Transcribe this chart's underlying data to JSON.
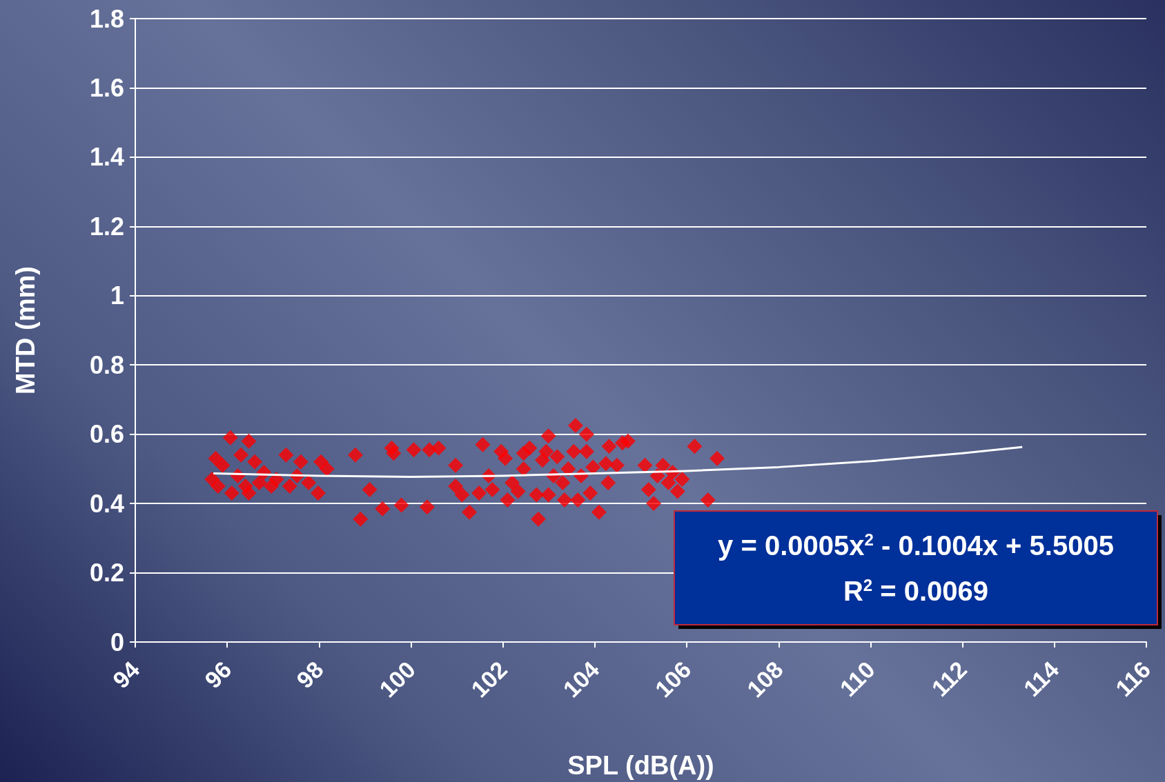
{
  "chart_data": {
    "type": "scatter",
    "xlabel": "SPL (dB(A))",
    "ylabel": "MTD (mm)",
    "xlim": [
      94,
      116
    ],
    "xticks": [
      94,
      96,
      98,
      100,
      102,
      104,
      106,
      108,
      110,
      112,
      114,
      116
    ],
    "ylim": [
      0,
      1.8
    ],
    "yticks": [
      0,
      0.2,
      0.4,
      0.6,
      0.8,
      1,
      1.2,
      1.4,
      1.6,
      1.8
    ],
    "grid": "y",
    "marker": "diamond",
    "annotations": [
      "y = 0.0005x$^{2}$ - 0.1004x + 5.5005",
      "R$^{2}$ = 0.0069"
    ],
    "series": [
      {
        "color": "#ff0000",
        "x": [
          95.67,
          95.75,
          95.8,
          95.9,
          96.07,
          96.1,
          96.23,
          96.3,
          96.4,
          96.47,
          96.47,
          96.6,
          96.7,
          96.8,
          96.96,
          97.07,
          97.28,
          97.36,
          97.52,
          97.6,
          97.77,
          97.98,
          98.04,
          98.17,
          98.79,
          98.9,
          99.1,
          99.38,
          99.58,
          99.62,
          99.79,
          100.06,
          100.35,
          100.4,
          100.6,
          100.97,
          100.97,
          101.11,
          101.27,
          101.48,
          101.56,
          101.69,
          101.77,
          101.96,
          102.05,
          102.1,
          102.2,
          102.33,
          102.45,
          102.45,
          102.58,
          102.73,
          102.77,
          102.86,
          102.94,
          102.99,
          102.99,
          103.1,
          103.18,
          103.3,
          103.34,
          103.42,
          103.54,
          103.58,
          103.63,
          103.7,
          103.82,
          103.82,
          103.9,
          103.96,
          104.09,
          104.24,
          104.29,
          104.31,
          104.48,
          104.6,
          104.72,
          105.09,
          105.17,
          105.28,
          105.36,
          105.48,
          105.6,
          105.69,
          105.8,
          105.9,
          106.17,
          106.46,
          106.66
        ],
        "values": [
          0.47,
          0.53,
          0.45,
          0.51,
          0.59,
          0.43,
          0.48,
          0.54,
          0.45,
          0.58,
          0.43,
          0.52,
          0.46,
          0.49,
          0.45,
          0.47,
          0.54,
          0.45,
          0.48,
          0.52,
          0.46,
          0.43,
          0.52,
          0.5,
          0.54,
          0.355,
          0.44,
          0.385,
          0.56,
          0.545,
          0.395,
          0.555,
          0.39,
          0.555,
          0.56,
          0.51,
          0.45,
          0.425,
          0.375,
          0.43,
          0.57,
          0.48,
          0.44,
          0.55,
          0.53,
          0.41,
          0.46,
          0.435,
          0.5,
          0.545,
          0.56,
          0.425,
          0.355,
          0.525,
          0.55,
          0.595,
          0.425,
          0.48,
          0.535,
          0.46,
          0.41,
          0.5,
          0.55,
          0.625,
          0.41,
          0.48,
          0.6,
          0.55,
          0.43,
          0.505,
          0.375,
          0.515,
          0.46,
          0.565,
          0.51,
          0.575,
          0.58,
          0.51,
          0.44,
          0.4,
          0.48,
          0.51,
          0.46,
          0.49,
          0.435,
          0.47,
          0.565,
          0.41,
          0.53
        ]
      },
      {
        "type": "line",
        "color": "#ffffff",
        "marker": "none",
        "x": [
          95.7,
          98,
          100,
          102,
          104,
          106,
          108,
          110,
          112,
          113.3
        ],
        "values": [
          0.487,
          0.48,
          0.477,
          0.48,
          0.487,
          0.494,
          0.505,
          0.522,
          0.545,
          0.563
        ]
      }
    ]
  }
}
